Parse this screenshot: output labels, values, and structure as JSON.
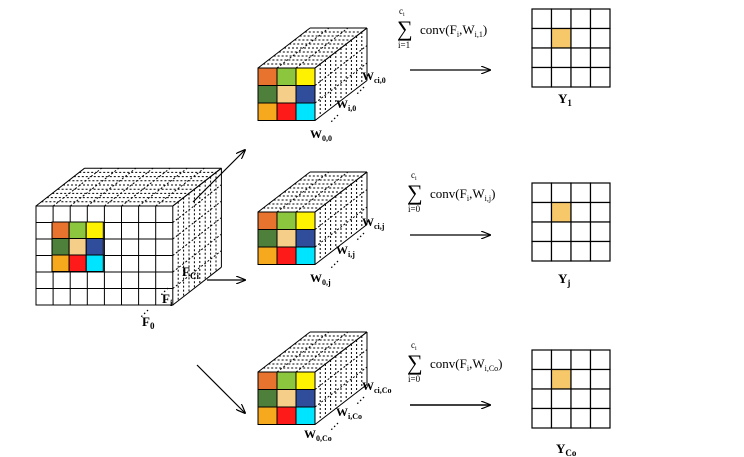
{
  "input": {
    "labels": [
      "F",
      "F",
      "F"
    ],
    "subs": [
      "Ci",
      "i",
      "0"
    ],
    "colors": [
      "#e8732e",
      "#8cc63f",
      "#fff200",
      "#4e7f3b",
      "#f5cf8a",
      "#2f4d9b",
      "#f7a91d",
      "#ff1a1a",
      "#00e5ff"
    ]
  },
  "filters": [
    {
      "w_labels": [
        "W",
        "W",
        "W"
      ],
      "w_subs": [
        "ci,0",
        "i,0",
        "0,0"
      ],
      "sum_top": "c",
      "sum_top_sub": "i",
      "sum_bottom": "i=1",
      "conv": "conv(F",
      "conv_fsub": "i",
      "conv_w": ",W",
      "conv_wsub": "i,1",
      "conv_close": ")",
      "output": "Y",
      "output_sub": "1"
    },
    {
      "w_labels": [
        "W",
        "W",
        "W"
      ],
      "w_subs": [
        "ci,j",
        "i,j",
        "0,j"
      ],
      "sum_top": "c",
      "sum_top_sub": "i",
      "sum_bottom": "i=0",
      "conv": "conv(F",
      "conv_fsub": "i",
      "conv_w": ",W",
      "conv_wsub": "i,j",
      "conv_close": ")",
      "output": "Y",
      "output_sub": "j"
    },
    {
      "w_labels": [
        "W",
        "W",
        "W"
      ],
      "w_subs": [
        "ci,Co",
        "i,Co",
        "0,Co"
      ],
      "sum_top": "c",
      "sum_top_sub": "i",
      "sum_bottom": "i=0",
      "conv": "conv(F",
      "conv_fsub": "i",
      "conv_w": ",W",
      "conv_wsub": "i,Co",
      "conv_close": ")",
      "output": "Y",
      "output_sub": "Co"
    }
  ],
  "filter_colors": [
    "#e8732e",
    "#8cc63f",
    "#fff200",
    "#4e7f3b",
    "#f5cf8a",
    "#2f4d9b",
    "#f7a91d",
    "#ff1a1a",
    "#00e5ff"
  ],
  "output_highlight": "#f7c86a"
}
